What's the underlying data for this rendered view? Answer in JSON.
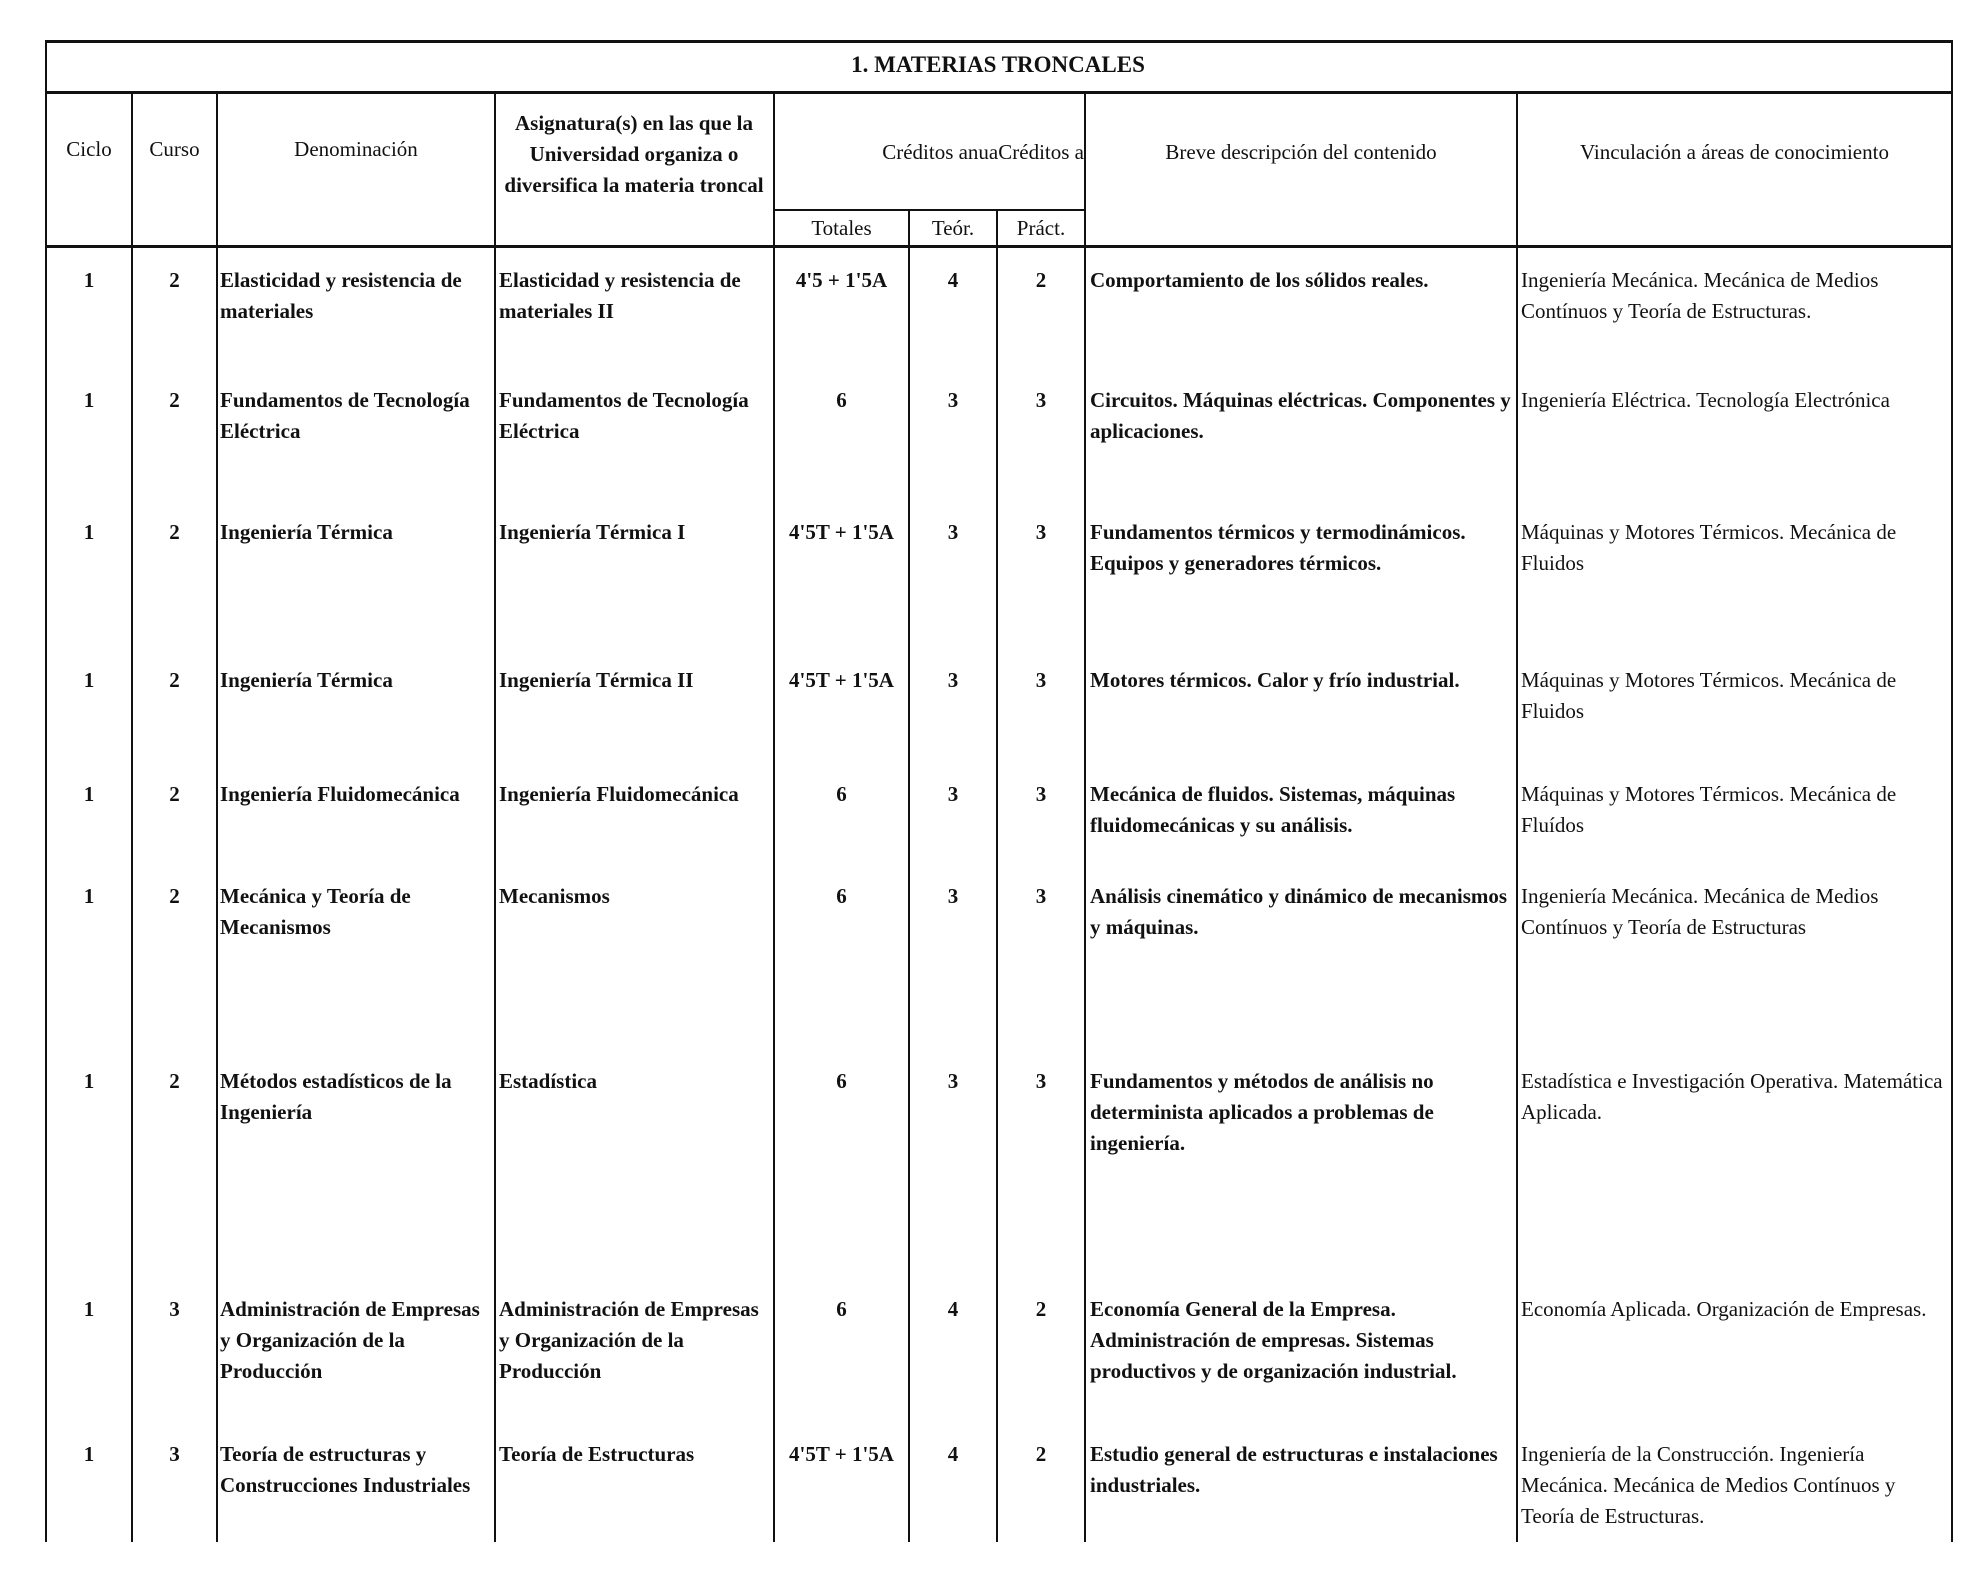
{
  "title": "1. MATERIAS TRONCALES",
  "headers": {
    "ciclo": "Ciclo",
    "curso": "Curso",
    "denominacion": "Denominación",
    "asignatura": "Asignatura(s) en las que la Universidad organiza o diversifica la materia troncal",
    "creditos": "Créditos anuaCréditos a",
    "totales": "Totales",
    "teor": "Teór.",
    "pract": "Práct.",
    "descripcion": "Breve descripción del contenido",
    "vinculacion": "Vinculación a áreas de conocimiento"
  },
  "rows": [
    {
      "ciclo": "1",
      "curso": "2",
      "denominacion": "Elasticidad y resistencia de materiales",
      "asignatura": "Elasticidad y resistencia de materiales II",
      "totales": "4'5 + 1'5A",
      "teor": "4",
      "pract": "2",
      "descripcion": "Comportamiento de los sólidos reales.",
      "vinculacion": "Ingeniería Mecánica. Mecánica de Medios Contínuos y Teoría de Estructuras."
    },
    {
      "ciclo": "1",
      "curso": "2",
      "denominacion": "Fundamentos de Tecnología Eléctrica",
      "asignatura": "Fundamentos de Tecnología Eléctrica",
      "totales": "6",
      "teor": "3",
      "pract": "3",
      "descripcion": "Circuitos. Máquinas eléctricas. Componentes y aplicaciones.",
      "vinculacion": "Ingeniería Eléctrica. Tecnología Electrónica"
    },
    {
      "ciclo": "1",
      "curso": "2",
      "denominacion": "Ingeniería Térmica",
      "asignatura": "Ingeniería Térmica I",
      "totales": "4'5T + 1'5A",
      "teor": "3",
      "pract": "3",
      "descripcion": "Fundamentos térmicos y termodinámicos. Equipos y generadores térmicos.",
      "vinculacion": "Máquinas y Motores Térmicos. Mecánica de Fluidos"
    },
    {
      "ciclo": "1",
      "curso": "2",
      "denominacion": "Ingeniería Térmica",
      "asignatura": "Ingeniería Térmica II",
      "totales": "4'5T + 1'5A",
      "teor": "3",
      "pract": "3",
      "descripcion": "Motores térmicos. Calor y frío industrial.",
      "vinculacion": "Máquinas y Motores Térmicos. Mecánica de Fluidos"
    },
    {
      "ciclo": "1",
      "curso": "2",
      "denominacion": "Ingeniería Fluidomecánica",
      "asignatura": "Ingeniería Fluidomecánica",
      "totales": "6",
      "teor": "3",
      "pract": "3",
      "descripcion": "Mecánica de fluidos. Sistemas, máquinas fluidomecánicas y su análisis.",
      "vinculacion": "Máquinas y Motores Térmicos. Mecánica de Fluídos"
    },
    {
      "ciclo": "1",
      "curso": "2",
      "denominacion": "Mecánica y Teoría de Mecanismos",
      "asignatura": "Mecanismos",
      "totales": "6",
      "teor": "3",
      "pract": "3",
      "descripcion": "Análisis cinemático y dinámico de mecanismos y máquinas.",
      "vinculacion": "Ingeniería Mecánica. Mecánica de Medios Contínuos y Teoría de Estructuras"
    },
    {
      "ciclo": "1",
      "curso": "2",
      "denominacion": "Métodos estadísticos de la Ingeniería",
      "asignatura": "Estadística",
      "totales": "6",
      "teor": "3",
      "pract": "3",
      "descripcion": "Fundamentos y métodos de análisis no determinista aplicados a problemas de ingeniería.",
      "vinculacion": "Estadística e Investigación Operativa. Matemática Aplicada."
    },
    {
      "ciclo": "1",
      "curso": "3",
      "denominacion": "Administración de Empresas y Organización de la Producción",
      "asignatura": "Administración de Empresas y Organización de la Producción",
      "totales": "6",
      "teor": "4",
      "pract": "2",
      "descripcion": "Economía General de la Empresa. Administración de empresas. Sistemas productivos y de organización industrial.",
      "vinculacion": "Economía Aplicada. Organización de Empresas."
    },
    {
      "ciclo": "1",
      "curso": "3",
      "denominacion": "Teoría de estructuras y Construcciones Industriales",
      "asignatura": "Teoría de Estructuras",
      "totales": "4'5T + 1'5A",
      "teor": "4",
      "pract": "2",
      "descripcion": "Estudio general de estructuras e instalaciones industriales.",
      "vinculacion": "Ingeniería de la Construcción. Ingeniería Mecánica. Mecánica de Medios Contínuos y Teoría de Estructuras."
    }
  ]
}
